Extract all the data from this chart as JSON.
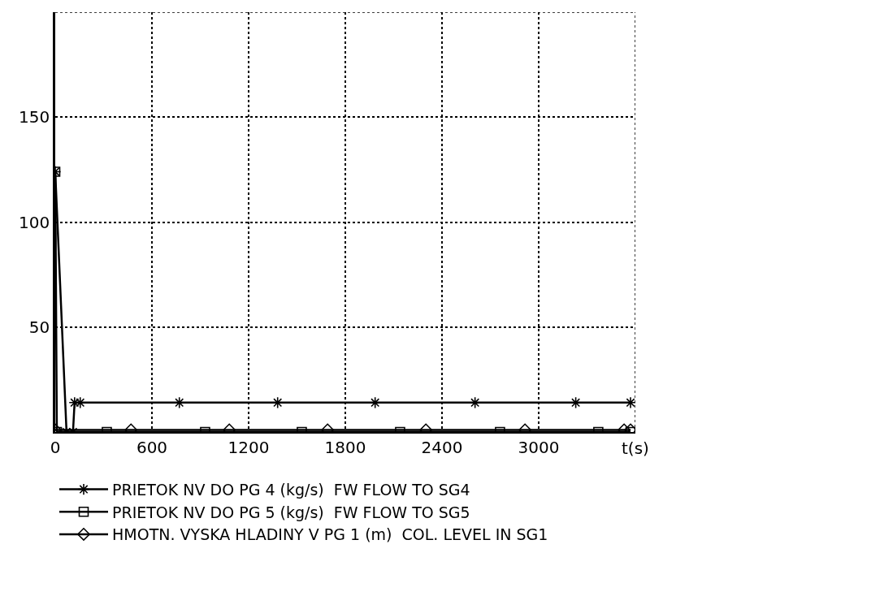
{
  "chart_data": {
    "type": "line",
    "xlabel": "t(s)",
    "xlim": [
      0,
      3600
    ],
    "xticks": [
      0,
      600,
      1200,
      1800,
      2400,
      3000,
      {
        "value": 3600,
        "label": null
      }
    ],
    "ylim": [
      0,
      200
    ],
    "yticks": [
      50,
      100,
      150,
      {
        "value": 200,
        "label": null
      }
    ],
    "grid": true,
    "legend": "bottom",
    "series": [
      {
        "name": "PRIETOK NV DO PG 4 (kg/s)  FW FLOW TO SG4",
        "color": "#000000",
        "marker": "cross",
        "x": [
          0,
          70,
          110,
          120,
          155,
          770,
          1380,
          1985,
          2605,
          3230,
          3570
        ],
        "values": [
          124,
          0,
          0,
          14,
          14,
          14,
          14,
          14,
          14,
          14,
          14
        ]
      },
      {
        "name": "PRIETOK NV DO PG 5 (kg/s)  FW FLOW TO SG5",
        "color": "#000000",
        "marker": "square",
        "x": [
          0,
          10,
          320,
          930,
          1530,
          2140,
          2760,
          3370,
          3570
        ],
        "values": [
          124,
          0,
          0,
          0,
          0,
          0,
          0,
          0,
          0
        ]
      },
      {
        "name": "HMOTN. VYSKA HLADINY V PG 1 (m)  COL. LEVEL IN SG1",
        "color": "#000000",
        "marker": "diamond",
        "x": [
          0,
          470,
          1080,
          1690,
          2300,
          2915,
          3530,
          3570
        ],
        "values": [
          1,
          1,
          1,
          1,
          1,
          1,
          1,
          1
        ]
      }
    ]
  }
}
